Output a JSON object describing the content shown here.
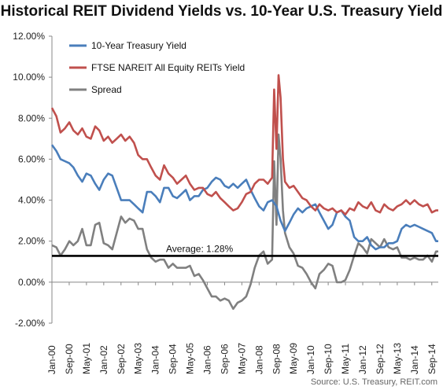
{
  "chart_data": {
    "type": "line",
    "title": "Historical REIT Dividend Yields vs. 10-Year U.S. Treasury Yield",
    "xlabel": "",
    "ylabel": "",
    "ylim": [
      -2,
      12
    ],
    "yticks": [
      "12.00%",
      "10.00%",
      "8.00%",
      "6.00%",
      "4.00%",
      "2.00%",
      "0.00%",
      "-2.00%"
    ],
    "ytick_values": [
      12,
      10,
      8,
      6,
      4,
      2,
      0,
      -2
    ],
    "xlim": [
      2000.0,
      2014.917
    ],
    "xticks": [
      "Jan-00",
      "Sep-00",
      "May-01",
      "Jan-02",
      "Sep-02",
      "May-03",
      "Jan-04",
      "Sep-04",
      "May-05",
      "Jan-06",
      "Sep-06",
      "May-07",
      "Jan-08",
      "Sep-08",
      "May-09",
      "Jan-10",
      "Sep-10",
      "May-11",
      "Jan-12",
      "Sep-12",
      "May-13",
      "Jan-14",
      "Sep-14"
    ],
    "xtick_values": [
      2000.0,
      2000.667,
      2001.333,
      2002.0,
      2002.667,
      2003.333,
      2004.0,
      2004.667,
      2005.333,
      2006.0,
      2006.667,
      2007.333,
      2008.0,
      2008.667,
      2009.333,
      2010.0,
      2010.667,
      2011.333,
      2012.0,
      2012.667,
      2013.333,
      2014.0,
      2014.667
    ],
    "legend_position": "top-left",
    "grid": false,
    "series": [
      {
        "name": "10-Year Treasury Yield",
        "color": "#4a7ebb",
        "points": [
          [
            2000.0,
            6.7
          ],
          [
            2000.17,
            6.4
          ],
          [
            2000.33,
            6.0
          ],
          [
            2000.5,
            5.9
          ],
          [
            2000.67,
            5.8
          ],
          [
            2000.83,
            5.6
          ],
          [
            2001.0,
            5.2
          ],
          [
            2001.17,
            4.9
          ],
          [
            2001.33,
            5.3
          ],
          [
            2001.5,
            5.2
          ],
          [
            2001.67,
            4.8
          ],
          [
            2001.83,
            4.5
          ],
          [
            2002.0,
            5.0
          ],
          [
            2002.17,
            5.3
          ],
          [
            2002.33,
            5.2
          ],
          [
            2002.5,
            4.6
          ],
          [
            2002.67,
            4.0
          ],
          [
            2002.83,
            4.0
          ],
          [
            2003.0,
            4.0
          ],
          [
            2003.17,
            3.8
          ],
          [
            2003.33,
            3.6
          ],
          [
            2003.5,
            3.4
          ],
          [
            2003.67,
            4.4
          ],
          [
            2003.83,
            4.4
          ],
          [
            2004.0,
            4.2
          ],
          [
            2004.17,
            3.9
          ],
          [
            2004.33,
            4.6
          ],
          [
            2004.5,
            4.6
          ],
          [
            2004.67,
            4.2
          ],
          [
            2004.83,
            4.1
          ],
          [
            2005.0,
            4.3
          ],
          [
            2005.17,
            4.5
          ],
          [
            2005.33,
            4.0
          ],
          [
            2005.5,
            4.2
          ],
          [
            2005.67,
            4.2
          ],
          [
            2005.83,
            4.5
          ],
          [
            2006.0,
            4.6
          ],
          [
            2006.17,
            4.9
          ],
          [
            2006.33,
            5.1
          ],
          [
            2006.5,
            5.0
          ],
          [
            2006.67,
            4.7
          ],
          [
            2006.83,
            4.6
          ],
          [
            2007.0,
            4.8
          ],
          [
            2007.17,
            4.6
          ],
          [
            2007.33,
            4.8
          ],
          [
            2007.5,
            5.0
          ],
          [
            2007.67,
            4.5
          ],
          [
            2007.83,
            4.1
          ],
          [
            2008.0,
            3.7
          ],
          [
            2008.17,
            3.5
          ],
          [
            2008.33,
            3.9
          ],
          [
            2008.5,
            4.0
          ],
          [
            2008.67,
            3.7
          ],
          [
            2008.83,
            3.0
          ],
          [
            2009.0,
            2.5
          ],
          [
            2009.17,
            2.9
          ],
          [
            2009.33,
            3.3
          ],
          [
            2009.5,
            3.6
          ],
          [
            2009.67,
            3.4
          ],
          [
            2009.83,
            3.6
          ],
          [
            2010.0,
            3.7
          ],
          [
            2010.17,
            3.8
          ],
          [
            2010.33,
            3.4
          ],
          [
            2010.5,
            3.0
          ],
          [
            2010.67,
            2.6
          ],
          [
            2010.83,
            2.8
          ],
          [
            2011.0,
            3.4
          ],
          [
            2011.17,
            3.5
          ],
          [
            2011.33,
            3.2
          ],
          [
            2011.5,
            3.0
          ],
          [
            2011.67,
            2.2
          ],
          [
            2011.83,
            2.0
          ],
          [
            2012.0,
            2.0
          ],
          [
            2012.17,
            2.2
          ],
          [
            2012.33,
            1.8
          ],
          [
            2012.5,
            1.6
          ],
          [
            2012.67,
            1.7
          ],
          [
            2012.83,
            1.7
          ],
          [
            2013.0,
            1.9
          ],
          [
            2013.17,
            1.9
          ],
          [
            2013.33,
            2.0
          ],
          [
            2013.5,
            2.6
          ],
          [
            2013.67,
            2.8
          ],
          [
            2013.83,
            2.7
          ],
          [
            2014.0,
            2.8
          ],
          [
            2014.17,
            2.7
          ],
          [
            2014.33,
            2.6
          ],
          [
            2014.5,
            2.5
          ],
          [
            2014.67,
            2.4
          ],
          [
            2014.83,
            2.0
          ],
          [
            2014.917,
            2.0
          ]
        ]
      },
      {
        "name": "FTSE NAREIT All Equity REITs Yield",
        "color": "#c0504d",
        "points": [
          [
            2000.0,
            8.5
          ],
          [
            2000.17,
            8.1
          ],
          [
            2000.33,
            7.3
          ],
          [
            2000.5,
            7.5
          ],
          [
            2000.67,
            7.8
          ],
          [
            2000.83,
            7.4
          ],
          [
            2001.0,
            7.2
          ],
          [
            2001.17,
            7.5
          ],
          [
            2001.33,
            7.1
          ],
          [
            2001.5,
            7.0
          ],
          [
            2001.67,
            7.6
          ],
          [
            2001.83,
            7.4
          ],
          [
            2002.0,
            6.9
          ],
          [
            2002.17,
            7.1
          ],
          [
            2002.33,
            6.8
          ],
          [
            2002.5,
            7.0
          ],
          [
            2002.67,
            7.2
          ],
          [
            2002.83,
            6.9
          ],
          [
            2003.0,
            7.1
          ],
          [
            2003.17,
            6.8
          ],
          [
            2003.33,
            6.2
          ],
          [
            2003.5,
            6.0
          ],
          [
            2003.67,
            6.0
          ],
          [
            2003.83,
            5.6
          ],
          [
            2004.0,
            5.2
          ],
          [
            2004.17,
            5.0
          ],
          [
            2004.33,
            5.7
          ],
          [
            2004.5,
            5.3
          ],
          [
            2004.67,
            5.1
          ],
          [
            2004.83,
            4.8
          ],
          [
            2005.0,
            5.0
          ],
          [
            2005.17,
            5.2
          ],
          [
            2005.33,
            4.8
          ],
          [
            2005.5,
            4.5
          ],
          [
            2005.67,
            4.6
          ],
          [
            2005.83,
            4.6
          ],
          [
            2006.0,
            4.3
          ],
          [
            2006.17,
            4.2
          ],
          [
            2006.33,
            4.4
          ],
          [
            2006.5,
            4.1
          ],
          [
            2006.67,
            3.9
          ],
          [
            2006.83,
            3.7
          ],
          [
            2007.0,
            3.5
          ],
          [
            2007.17,
            3.6
          ],
          [
            2007.33,
            3.9
          ],
          [
            2007.5,
            4.3
          ],
          [
            2007.67,
            4.4
          ],
          [
            2007.83,
            4.8
          ],
          [
            2008.0,
            5.0
          ],
          [
            2008.17,
            5.0
          ],
          [
            2008.33,
            4.8
          ],
          [
            2008.5,
            5.1
          ],
          [
            2008.58,
            9.4
          ],
          [
            2008.67,
            6.5
          ],
          [
            2008.75,
            10.1
          ],
          [
            2008.83,
            9.0
          ],
          [
            2008.92,
            6.0
          ],
          [
            2009.0,
            4.9
          ],
          [
            2009.17,
            4.6
          ],
          [
            2009.33,
            4.7
          ],
          [
            2009.5,
            4.4
          ],
          [
            2009.67,
            4.1
          ],
          [
            2009.83,
            4.0
          ],
          [
            2010.0,
            3.7
          ],
          [
            2010.17,
            3.5
          ],
          [
            2010.33,
            3.8
          ],
          [
            2010.5,
            3.6
          ],
          [
            2010.67,
            3.5
          ],
          [
            2010.83,
            3.6
          ],
          [
            2011.0,
            3.4
          ],
          [
            2011.17,
            3.5
          ],
          [
            2011.33,
            3.3
          ],
          [
            2011.5,
            3.6
          ],
          [
            2011.67,
            3.5
          ],
          [
            2011.83,
            3.9
          ],
          [
            2012.0,
            3.7
          ],
          [
            2012.17,
            3.6
          ],
          [
            2012.33,
            3.9
          ],
          [
            2012.5,
            3.5
          ],
          [
            2012.67,
            3.4
          ],
          [
            2012.83,
            3.8
          ],
          [
            2013.0,
            3.6
          ],
          [
            2013.17,
            3.5
          ],
          [
            2013.33,
            3.7
          ],
          [
            2013.5,
            3.8
          ],
          [
            2013.67,
            4.0
          ],
          [
            2013.83,
            3.8
          ],
          [
            2014.0,
            4.0
          ],
          [
            2014.17,
            3.8
          ],
          [
            2014.33,
            3.7
          ],
          [
            2014.5,
            3.8
          ],
          [
            2014.67,
            3.4
          ],
          [
            2014.83,
            3.5
          ],
          [
            2014.917,
            3.5
          ]
        ]
      },
      {
        "name": "Spread",
        "color": "#808080",
        "points": [
          [
            2000.0,
            1.8
          ],
          [
            2000.17,
            1.7
          ],
          [
            2000.33,
            1.3
          ],
          [
            2000.5,
            1.6
          ],
          [
            2000.67,
            2.0
          ],
          [
            2000.83,
            1.8
          ],
          [
            2001.0,
            2.0
          ],
          [
            2001.17,
            2.6
          ],
          [
            2001.33,
            1.8
          ],
          [
            2001.5,
            1.8
          ],
          [
            2001.67,
            2.8
          ],
          [
            2001.83,
            2.9
          ],
          [
            2002.0,
            1.9
          ],
          [
            2002.17,
            1.8
          ],
          [
            2002.33,
            1.6
          ],
          [
            2002.5,
            2.4
          ],
          [
            2002.67,
            3.2
          ],
          [
            2002.83,
            2.9
          ],
          [
            2003.0,
            3.1
          ],
          [
            2003.17,
            3.0
          ],
          [
            2003.33,
            2.6
          ],
          [
            2003.5,
            2.6
          ],
          [
            2003.67,
            1.6
          ],
          [
            2003.83,
            1.2
          ],
          [
            2004.0,
            1.0
          ],
          [
            2004.17,
            1.1
          ],
          [
            2004.33,
            1.1
          ],
          [
            2004.5,
            0.7
          ],
          [
            2004.67,
            0.9
          ],
          [
            2004.83,
            0.7
          ],
          [
            2005.0,
            0.7
          ],
          [
            2005.17,
            0.7
          ],
          [
            2005.33,
            0.8
          ],
          [
            2005.5,
            0.3
          ],
          [
            2005.67,
            0.4
          ],
          [
            2005.83,
            0.1
          ],
          [
            2006.0,
            -0.3
          ],
          [
            2006.17,
            -0.7
          ],
          [
            2006.33,
            -0.7
          ],
          [
            2006.5,
            -0.9
          ],
          [
            2006.67,
            -0.8
          ],
          [
            2006.83,
            -0.9
          ],
          [
            2007.0,
            -1.3
          ],
          [
            2007.17,
            -1.0
          ],
          [
            2007.33,
            -0.9
          ],
          [
            2007.5,
            -0.7
          ],
          [
            2007.67,
            -0.1
          ],
          [
            2007.83,
            0.7
          ],
          [
            2008.0,
            1.3
          ],
          [
            2008.17,
            1.5
          ],
          [
            2008.33,
            0.9
          ],
          [
            2008.5,
            1.1
          ],
          [
            2008.58,
            5.9
          ],
          [
            2008.67,
            2.8
          ],
          [
            2008.75,
            7.2
          ],
          [
            2008.83,
            6.0
          ],
          [
            2008.92,
            3.5
          ],
          [
            2009.0,
            2.4
          ],
          [
            2009.17,
            1.7
          ],
          [
            2009.33,
            1.4
          ],
          [
            2009.5,
            0.8
          ],
          [
            2009.67,
            0.7
          ],
          [
            2009.83,
            0.4
          ],
          [
            2010.0,
            0.0
          ],
          [
            2010.17,
            -0.3
          ],
          [
            2010.33,
            0.4
          ],
          [
            2010.5,
            0.6
          ],
          [
            2010.67,
            0.9
          ],
          [
            2010.83,
            0.8
          ],
          [
            2011.0,
            0.0
          ],
          [
            2011.17,
            0.0
          ],
          [
            2011.33,
            0.1
          ],
          [
            2011.5,
            0.6
          ],
          [
            2011.67,
            1.3
          ],
          [
            2011.83,
            1.9
          ],
          [
            2012.0,
            1.7
          ],
          [
            2012.17,
            1.4
          ],
          [
            2012.33,
            2.1
          ],
          [
            2012.5,
            1.9
          ],
          [
            2012.67,
            1.7
          ],
          [
            2012.83,
            2.1
          ],
          [
            2013.0,
            1.7
          ],
          [
            2013.17,
            1.6
          ],
          [
            2013.33,
            1.7
          ],
          [
            2013.5,
            1.2
          ],
          [
            2013.67,
            1.2
          ],
          [
            2013.83,
            1.1
          ],
          [
            2014.0,
            1.2
          ],
          [
            2014.17,
            1.1
          ],
          [
            2014.33,
            1.1
          ],
          [
            2014.5,
            1.3
          ],
          [
            2014.67,
            1.0
          ],
          [
            2014.83,
            1.5
          ],
          [
            2014.917,
            1.5
          ]
        ]
      }
    ],
    "reference_line": {
      "label": "Average: 1.28%",
      "value": 1.28,
      "color": "#000000"
    },
    "source": "Source: U.S. Treasury, REIT.com"
  }
}
